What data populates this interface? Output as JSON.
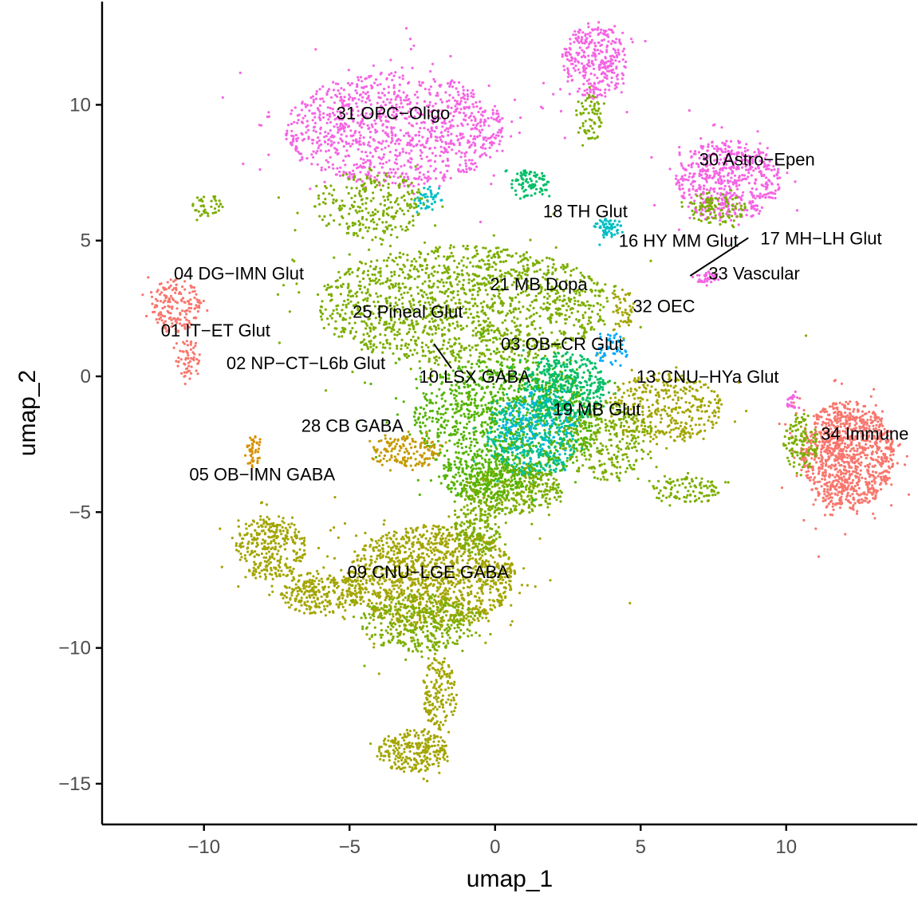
{
  "chart_data": {
    "type": "scatter",
    "title": "",
    "xlabel": "umap_1",
    "ylabel": "umap_2",
    "xlim": [
      -13.5,
      14.5
    ],
    "ylim": [
      -16.5,
      13.8
    ],
    "x_ticks": [
      -10,
      -5,
      0,
      5,
      10
    ],
    "y_ticks": [
      -15,
      -10,
      -5,
      0,
      5,
      10
    ],
    "x_tick_labels": [
      "−10",
      "−5",
      "0",
      "5",
      "10"
    ],
    "y_tick_labels": [
      "−15",
      "−10",
      "−5",
      "0",
      "5",
      "10"
    ],
    "grid": false,
    "legend": "none",
    "cluster_labels": [
      {
        "text": "31 OPC−Oligo",
        "x": -3.5,
        "y": 9.7
      },
      {
        "text": "30 Astro−Epen",
        "x": 9.0,
        "y": 8.0
      },
      {
        "text": "18 TH Glut",
        "x": 3.1,
        "y": 6.1
      },
      {
        "text": "16 HY MM Glut",
        "x": 6.3,
        "y": 5.0
      },
      {
        "text": "17 MH−LH Glut",
        "x": 11.2,
        "y": 5.1
      },
      {
        "text": "04 DG−IMN Glut",
        "x": -8.8,
        "y": 3.8
      },
      {
        "text": "33 Vascular",
        "x": 8.9,
        "y": 3.8
      },
      {
        "text": "21 MB Dopa",
        "x": 1.5,
        "y": 3.4
      },
      {
        "text": "32 OEC",
        "x": 5.8,
        "y": 2.6
      },
      {
        "text": "25 Pineal Glut",
        "x": -3.0,
        "y": 2.4
      },
      {
        "text": "01 IT−ET Glut",
        "x": -9.6,
        "y": 1.7
      },
      {
        "text": "03 OB−CR Glut",
        "x": 2.3,
        "y": 1.2
      },
      {
        "text": "02 NP−CT−L6b Glut",
        "x": -6.5,
        "y": 0.5
      },
      {
        "text": "10 LSX GABA",
        "x": -0.7,
        "y": 0.0
      },
      {
        "text": "13 CNU−HYa Glut",
        "x": 7.3,
        "y": 0.0
      },
      {
        "text": "19 MB Glut",
        "x": 3.5,
        "y": -1.2
      },
      {
        "text": "28 CB GABA",
        "x": -4.9,
        "y": -1.8
      },
      {
        "text": "34 Immune",
        "x": 12.7,
        "y": -2.1
      },
      {
        "text": "05 OB−IMN GABA",
        "x": -8.0,
        "y": -3.6
      },
      {
        "text": "09 CNU−LGE GABA",
        "x": -2.3,
        "y": -7.2
      }
    ],
    "leader_lines": [
      {
        "from": [
          6.7,
          3.7
        ],
        "to": [
          8.7,
          5.1
        ]
      },
      {
        "from": [
          -2.1,
          1.2
        ],
        "to": [
          -1.5,
          0.3
        ]
      }
    ],
    "clusters": [
      {
        "color": "#F564E3",
        "cx": -3.4,
        "cy": 9.1,
        "rx": 3.8,
        "ry": 2.1,
        "n": 1100
      },
      {
        "color": "#7CAE00",
        "cx": -4.3,
        "cy": 6.3,
        "rx": 1.9,
        "ry": 1.3,
        "n": 260
      },
      {
        "color": "#00BFC4",
        "cx": -2.3,
        "cy": 6.6,
        "rx": 0.5,
        "ry": 0.5,
        "n": 40
      },
      {
        "color": "#F564E3",
        "cx": 3.4,
        "cy": 11.6,
        "rx": 1.1,
        "ry": 1.4,
        "n": 320
      },
      {
        "color": "#7CAE00",
        "cx": 3.2,
        "cy": 9.5,
        "rx": 0.5,
        "ry": 0.9,
        "n": 70
      },
      {
        "color": "#F564E3",
        "cx": 8.0,
        "cy": 7.2,
        "rx": 1.8,
        "ry": 1.5,
        "n": 600
      },
      {
        "color": "#7CAE00",
        "cx": 7.6,
        "cy": 6.2,
        "rx": 1.0,
        "ry": 0.6,
        "n": 110
      },
      {
        "color": "#00BE67",
        "cx": 1.2,
        "cy": 7.1,
        "rx": 0.7,
        "ry": 0.5,
        "n": 90
      },
      {
        "color": "#00BFC4",
        "cx": 3.9,
        "cy": 5.5,
        "rx": 0.5,
        "ry": 0.35,
        "n": 60
      },
      {
        "color": "#7CAE00",
        "cx": -9.9,
        "cy": 6.3,
        "rx": 0.5,
        "ry": 0.4,
        "n": 40
      },
      {
        "color": "#F8766D",
        "cx": -11.0,
        "cy": 2.6,
        "rx": 0.9,
        "ry": 1.0,
        "n": 170
      },
      {
        "color": "#F8766D",
        "cx": -10.5,
        "cy": 0.6,
        "rx": 0.4,
        "ry": 0.8,
        "n": 60
      },
      {
        "color": "#7CAE00",
        "cx": -1.1,
        "cy": 2.6,
        "rx": 5.0,
        "ry": 2.2,
        "n": 1500
      },
      {
        "color": "#53B400",
        "cx": 0.4,
        "cy": -1.6,
        "rx": 3.2,
        "ry": 2.3,
        "n": 1200
      },
      {
        "color": "#00BE67",
        "cx": 2.4,
        "cy": -0.4,
        "rx": 1.4,
        "ry": 1.3,
        "n": 420
      },
      {
        "color": "#00C094",
        "cx": 1.3,
        "cy": -2.2,
        "rx": 1.6,
        "ry": 1.5,
        "n": 400
      },
      {
        "color": "#00B6EB",
        "cx": 1.5,
        "cy": -1.8,
        "rx": 1.4,
        "ry": 1.3,
        "n": 120
      },
      {
        "color": "#A3A500",
        "cx": 5.8,
        "cy": -1.2,
        "rx": 2.0,
        "ry": 1.3,
        "n": 380
      },
      {
        "color": "#7CAE00",
        "cx": 3.8,
        "cy": -2.4,
        "rx": 1.5,
        "ry": 1.5,
        "n": 260
      },
      {
        "color": "#00A9FF",
        "cx": 4.0,
        "cy": 1.0,
        "rx": 0.6,
        "ry": 0.6,
        "n": 50
      },
      {
        "color": "#7CAE00",
        "cx": 0.6,
        "cy": -4.2,
        "rx": 1.7,
        "ry": 0.9,
        "n": 360
      },
      {
        "color": "#53B400",
        "cx": -0.4,
        "cy": -3.8,
        "rx": 1.4,
        "ry": 0.8,
        "n": 200
      },
      {
        "color": "#C49A00",
        "cx": -3.1,
        "cy": -2.8,
        "rx": 1.3,
        "ry": 0.6,
        "n": 160
      },
      {
        "color": "#D89000",
        "cx": -8.3,
        "cy": -2.8,
        "rx": 0.3,
        "ry": 0.6,
        "n": 45
      },
      {
        "color": "#A3A500",
        "cx": -7.7,
        "cy": -6.3,
        "rx": 1.2,
        "ry": 1.2,
        "n": 320
      },
      {
        "color": "#A3A500",
        "cx": -6.0,
        "cy": -8.0,
        "rx": 1.4,
        "ry": 0.8,
        "n": 260
      },
      {
        "color": "#A3A500",
        "cx": -2.2,
        "cy": -7.4,
        "rx": 2.9,
        "ry": 1.9,
        "n": 1300
      },
      {
        "color": "#7CAE00",
        "cx": -2.6,
        "cy": -9.1,
        "rx": 2.0,
        "ry": 1.1,
        "n": 350
      },
      {
        "color": "#A3A500",
        "cx": -1.9,
        "cy": -11.7,
        "rx": 0.6,
        "ry": 1.4,
        "n": 160
      },
      {
        "color": "#A3A500",
        "cx": -2.8,
        "cy": -13.8,
        "rx": 1.2,
        "ry": 0.8,
        "n": 260
      },
      {
        "color": "#7CAE00",
        "cx": -0.6,
        "cy": -5.6,
        "rx": 0.8,
        "ry": 1.0,
        "n": 180
      },
      {
        "color": "#7CAE00",
        "cx": 6.5,
        "cy": -4.2,
        "rx": 1.3,
        "ry": 0.5,
        "n": 110
      },
      {
        "color": "#F8766D",
        "cx": 12.1,
        "cy": -2.9,
        "rx": 1.6,
        "ry": 2.0,
        "n": 1100
      },
      {
        "color": "#7CAE00",
        "cx": 10.5,
        "cy": -2.4,
        "rx": 0.6,
        "ry": 1.1,
        "n": 120
      },
      {
        "color": "#F564E3",
        "cx": 10.2,
        "cy": -0.9,
        "rx": 0.25,
        "ry": 0.3,
        "n": 20
      },
      {
        "color": "#F564E3",
        "cx": 7.3,
        "cy": 3.6,
        "rx": 0.4,
        "ry": 0.3,
        "n": 35
      },
      {
        "color": "#A3A500",
        "cx": 4.4,
        "cy": 2.5,
        "rx": 0.4,
        "ry": 0.7,
        "n": 50
      }
    ]
  }
}
